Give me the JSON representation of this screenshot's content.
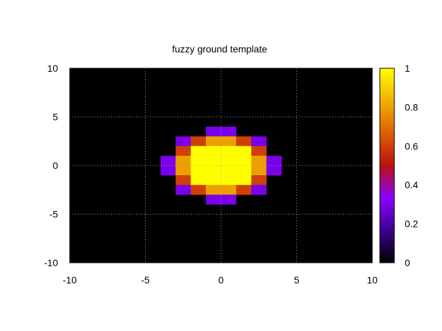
{
  "chart_data": {
    "type": "heatmap",
    "title": "fuzzy ground template",
    "xlabel": "",
    "ylabel": "",
    "xlim": [
      -10,
      10
    ],
    "ylim": [
      -10,
      10
    ],
    "x_ticks": [
      "-10",
      "-5",
      "0",
      "5",
      "10"
    ],
    "y_ticks": [
      "10",
      "5",
      "0",
      "-5",
      "-10"
    ],
    "grid": true,
    "colorbar": {
      "range": [
        0,
        1
      ],
      "ticks": [
        "1",
        "0.8",
        "0.6",
        "0.4",
        "0.2",
        "0"
      ],
      "palette": [
        "#000000",
        "#3c0090",
        "#8a00ff",
        "#bb1010",
        "#dd6000",
        "#f0b000",
        "#ffff00"
      ]
    },
    "cell_size": 1,
    "cell_x": [
      -10,
      -9,
      -8,
      -7,
      -6,
      -5,
      -4,
      -3,
      -2,
      -1,
      0,
      1,
      2,
      3,
      4,
      5,
      6,
      7,
      8,
      9
    ],
    "cell_y": [
      9,
      8,
      7,
      6,
      5,
      4,
      3,
      2,
      1,
      0,
      -1,
      -2,
      -3,
      -4,
      -5,
      -6,
      -7,
      -8,
      -9,
      -10
    ],
    "values": [
      [
        0,
        0,
        0,
        0,
        0,
        0,
        0,
        0,
        0,
        0,
        0,
        0,
        0,
        0,
        0,
        0,
        0,
        0,
        0,
        0
      ],
      [
        0,
        0,
        0,
        0,
        0,
        0,
        0,
        0,
        0,
        0,
        0,
        0,
        0,
        0,
        0,
        0,
        0,
        0,
        0,
        0
      ],
      [
        0,
        0,
        0,
        0,
        0,
        0,
        0,
        0,
        0,
        0,
        0,
        0,
        0,
        0,
        0,
        0,
        0,
        0,
        0,
        0
      ],
      [
        0,
        0,
        0,
        0,
        0,
        0,
        0,
        0,
        0,
        0,
        0,
        0,
        0,
        0,
        0,
        0,
        0,
        0,
        0,
        0
      ],
      [
        0,
        0,
        0,
        0,
        0,
        0,
        0,
        0,
        0,
        0,
        0,
        0,
        0,
        0,
        0,
        0,
        0,
        0,
        0,
        0
      ],
      [
        0,
        0,
        0,
        0,
        0,
        0,
        0,
        0,
        0,
        0,
        0,
        0,
        0,
        0,
        0,
        0,
        0,
        0,
        0,
        0
      ],
      [
        0,
        0,
        0,
        0,
        0,
        0,
        0,
        0,
        0,
        0.3,
        0.3,
        0,
        0,
        0,
        0,
        0,
        0,
        0,
        0,
        0
      ],
      [
        0,
        0,
        0,
        0,
        0,
        0,
        0,
        0.3,
        0.6,
        0.8,
        0.8,
        0.6,
        0.3,
        0,
        0,
        0,
        0,
        0,
        0,
        0
      ],
      [
        0,
        0,
        0,
        0,
        0,
        0,
        0,
        0.6,
        1,
        1,
        1,
        1,
        0.6,
        0,
        0,
        0,
        0,
        0,
        0,
        0
      ],
      [
        0,
        0,
        0,
        0,
        0,
        0,
        0.3,
        0.8,
        1,
        1,
        1,
        1,
        0.8,
        0.3,
        0,
        0,
        0,
        0,
        0,
        0
      ],
      [
        0,
        0,
        0,
        0,
        0,
        0,
        0.3,
        0.8,
        1,
        1,
        1,
        1,
        0.8,
        0.3,
        0,
        0,
        0,
        0,
        0,
        0
      ],
      [
        0,
        0,
        0,
        0,
        0,
        0,
        0,
        0.6,
        1,
        1,
        1,
        1,
        0.6,
        0,
        0,
        0,
        0,
        0,
        0,
        0
      ],
      [
        0,
        0,
        0,
        0,
        0,
        0,
        0,
        0.3,
        0.6,
        0.8,
        0.8,
        0.6,
        0.3,
        0,
        0,
        0,
        0,
        0,
        0,
        0
      ],
      [
        0,
        0,
        0,
        0,
        0,
        0,
        0,
        0,
        0,
        0.3,
        0.3,
        0,
        0,
        0,
        0,
        0,
        0,
        0,
        0,
        0
      ],
      [
        0,
        0,
        0,
        0,
        0,
        0,
        0,
        0,
        0,
        0,
        0,
        0,
        0,
        0,
        0,
        0,
        0,
        0,
        0,
        0
      ],
      [
        0,
        0,
        0,
        0,
        0,
        0,
        0,
        0,
        0,
        0,
        0,
        0,
        0,
        0,
        0,
        0,
        0,
        0,
        0,
        0
      ],
      [
        0,
        0,
        0,
        0,
        0,
        0,
        0,
        0,
        0,
        0,
        0,
        0,
        0,
        0,
        0,
        0,
        0,
        0,
        0,
        0
      ],
      [
        0,
        0,
        0,
        0,
        0,
        0,
        0,
        0,
        0,
        0,
        0,
        0,
        0,
        0,
        0,
        0,
        0,
        0,
        0,
        0
      ],
      [
        0,
        0,
        0,
        0,
        0,
        0,
        0,
        0,
        0,
        0,
        0,
        0,
        0,
        0,
        0,
        0,
        0,
        0,
        0,
        0
      ],
      [
        0,
        0,
        0,
        0,
        0,
        0,
        0,
        0,
        0,
        0,
        0,
        0,
        0,
        0,
        0,
        0,
        0,
        0,
        0,
        0
      ]
    ]
  }
}
